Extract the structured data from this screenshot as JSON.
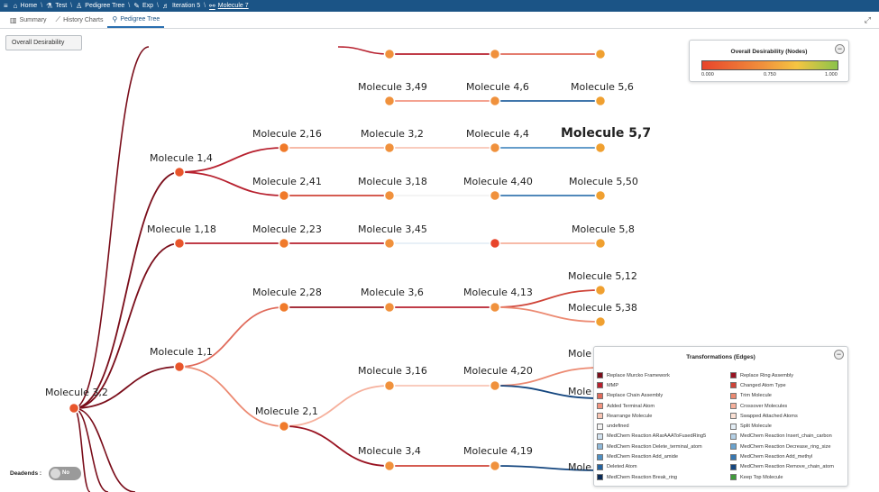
{
  "breadcrumb": [
    {
      "label": "Home",
      "icon": "home-icon"
    },
    {
      "label": "Test",
      "icon": "flask-icon"
    },
    {
      "label": "Pedigree Tree",
      "icon": "person-icon"
    },
    {
      "label": "Exp",
      "icon": "pencil-icon"
    },
    {
      "label": "Iteration 5",
      "icon": "iteration-icon"
    },
    {
      "label": "Molecule 7",
      "icon": "molecule-icon"
    }
  ],
  "tabs": [
    {
      "label": "Summary",
      "icon": "bar-chart-icon"
    },
    {
      "label": "History Charts",
      "icon": "line-chart-icon"
    },
    {
      "label": "Pedigree Tree",
      "icon": "tree-icon",
      "active": true
    }
  ],
  "desirability_button": "Overall Desirability",
  "node_legend": {
    "title": "Overall Desirability (Nodes)",
    "ticks": [
      "0.000",
      "0.750",
      "1.000"
    ],
    "colors": [
      "#e8452b",
      "#f0913c",
      "#f5c542",
      "#8bc34a"
    ]
  },
  "edge_legend": {
    "title": "Transformations (Edges)",
    "left": [
      {
        "label": "Replace Murcko Framework",
        "color": "#7a0d1a"
      },
      {
        "label": "MMP",
        "color": "#b7202e"
      },
      {
        "label": "Replace Chain Assembly",
        "color": "#e06a5a"
      },
      {
        "label": "Added Terminal Atom",
        "color": "#f29480"
      },
      {
        "label": "Rearrange Molecule",
        "color": "#f8c5b4"
      },
      {
        "label": "undefined",
        "color": "#f3f3f3"
      },
      {
        "label": "MedChem Reaction ARarAAAToFusedRing5",
        "color": "#d3e3f0"
      },
      {
        "label": "MedChem Reaction Delete_terminal_atom",
        "color": "#8fb9d9"
      },
      {
        "label": "MedChem Reaction Add_amide",
        "color": "#4f8fc2"
      },
      {
        "label": "Deleted Atom",
        "color": "#24639f"
      },
      {
        "label": "MedChem Reaction Break_ring",
        "color": "#0a2a57"
      }
    ],
    "right": [
      {
        "label": "Replace Ring Assembly",
        "color": "#9a1422"
      },
      {
        "label": "Changed Atom Type",
        "color": "#cf4438"
      },
      {
        "label": "Trim Molecule",
        "color": "#ec8a72"
      },
      {
        "label": "Crossover Molecules",
        "color": "#f6b09c"
      },
      {
        "label": "Swapped Attached Atoms",
        "color": "#fbe0d4"
      },
      {
        "label": "Split Molecule",
        "color": "#e4eef6"
      },
      {
        "label": "MedChem Reaction Insert_chain_carbon",
        "color": "#b4d0e6"
      },
      {
        "label": "MedChem Reaction Decrease_ring_size",
        "color": "#6aa3cf"
      },
      {
        "label": "MedChem Reaction Add_methyl",
        "color": "#3777b1"
      },
      {
        "label": "MedChem Reaction Remove_chain_atom",
        "color": "#14467f"
      },
      {
        "label": "Keep Top Molecule",
        "color": "#3f9a3a"
      }
    ]
  },
  "deadends": {
    "label": "Deadends :",
    "value": "No"
  },
  "tree": {
    "nodes": [
      {
        "label": "Molecule 3,2",
        "color": "#e8552b"
      },
      {
        "label": "",
        "color": "#f0913c"
      },
      {
        "label": "",
        "color": "#f0913c"
      },
      {
        "label": "",
        "color": "#f0a030"
      },
      {
        "label": "Molecule 3,49",
        "color": "#f0913c"
      },
      {
        "label": "Molecule 4,6",
        "color": "#f0913c"
      },
      {
        "label": "Molecule 5,6",
        "color": "#f0a030"
      },
      {
        "label": "Molecule 1,4",
        "color": "#e8552b"
      },
      {
        "label": "Molecule 2,16",
        "color": "#f07a2a"
      },
      {
        "label": "Molecule 3,2",
        "color": "#f0913c"
      },
      {
        "label": "Molecule 4,4",
        "color": "#f0913c"
      },
      {
        "label": "Molecule 5,7",
        "color": "#f0a030",
        "bold": true
      },
      {
        "label": "Molecule 2,41",
        "color": "#f07a2a"
      },
      {
        "label": "Molecule 3,18",
        "color": "#f0913c"
      },
      {
        "label": "Molecule 4,40",
        "color": "#f0913c"
      },
      {
        "label": "Molecule 5,50",
        "color": "#f0a030"
      },
      {
        "label": "Molecule 1,18",
        "color": "#e8552b"
      },
      {
        "label": "Molecule 2,23",
        "color": "#f07a2a"
      },
      {
        "label": "Molecule 3,45",
        "color": "#f0913c"
      },
      {
        "label": "",
        "color": "#e8452b"
      },
      {
        "label": "Molecule 5,8",
        "color": "#f0a030"
      },
      {
        "label": "Molecule 2,28",
        "color": "#f07a2a"
      },
      {
        "label": "Molecule 3,6",
        "color": "#f0913c"
      },
      {
        "label": "Molecule 4,13",
        "color": "#f0913c"
      },
      {
        "label": "Molecule 5,12",
        "color": "#f0a030"
      },
      {
        "label": "Molecule 5,38",
        "color": "#f0a030"
      },
      {
        "label": "Molecule 1,1",
        "color": "#e8552b"
      },
      {
        "label": "Molecule 2,1",
        "color": "#f07a2a"
      },
      {
        "label": "Molecule 3,16",
        "color": "#f0913c"
      },
      {
        "label": "Molecule 4,20",
        "color": "#f0913c"
      },
      {
        "label": "Molecule 3,4",
        "color": "#f0913c"
      },
      {
        "label": "Molecule 4,19",
        "color": "#f0913c"
      },
      {
        "label": "Mole",
        "color": "#f0a030"
      },
      {
        "label": "Mole",
        "color": "#f0a030"
      },
      {
        "label": "Mole",
        "color": "#f0a030"
      }
    ],
    "edges": [
      {
        "from": 1,
        "to": 2,
        "color": "#b7202e"
      },
      {
        "from": 2,
        "to": 3,
        "color": "#e06a5a"
      },
      {
        "from": 4,
        "to": 5,
        "color": "#f29480"
      },
      {
        "from": 5,
        "to": 6,
        "color": "#24639f"
      },
      {
        "from": 0,
        "to": 7,
        "color": "#7a0d1a"
      },
      {
        "from": 7,
        "to": 8,
        "color": "#b7202e"
      },
      {
        "from": 8,
        "to": 9,
        "color": "#f6b09c"
      },
      {
        "from": 9,
        "to": 10,
        "color": "#f8c5b4"
      },
      {
        "from": 10,
        "to": 11,
        "color": "#4f8fc2"
      },
      {
        "from": 7,
        "to": 12,
        "color": "#b7202e"
      },
      {
        "from": 12,
        "to": 13,
        "color": "#cf4438"
      },
      {
        "from": 13,
        "to": 14,
        "color": "#f3f3f3"
      },
      {
        "from": 14,
        "to": 15,
        "color": "#3777b1"
      },
      {
        "from": 0,
        "to": 16,
        "color": "#7a0d1a"
      },
      {
        "from": 16,
        "to": 17,
        "color": "#b7202e"
      },
      {
        "from": 17,
        "to": 18,
        "color": "#b7202e"
      },
      {
        "from": 18,
        "to": 19,
        "color": "#e4eef6"
      },
      {
        "from": 19,
        "to": 20,
        "color": "#f6b09c"
      },
      {
        "from": 0,
        "to": 26,
        "color": "#7a0d1a"
      },
      {
        "from": 26,
        "to": 21,
        "color": "#e06a5a"
      },
      {
        "from": 21,
        "to": 22,
        "color": "#9a1422"
      },
      {
        "from": 22,
        "to": 23,
        "color": "#b7202e"
      },
      {
        "from": 23,
        "to": 24,
        "color": "#cf4438"
      },
      {
        "from": 23,
        "to": 25,
        "color": "#ec8a72"
      },
      {
        "from": 26,
        "to": 27,
        "color": "#ec8a72"
      },
      {
        "from": 27,
        "to": 28,
        "color": "#f6b09c"
      },
      {
        "from": 28,
        "to": 29,
        "color": "#f8c5b4"
      },
      {
        "from": 29,
        "to": 32,
        "color": "#ec8a72"
      },
      {
        "from": 29,
        "to": 33,
        "color": "#14467f"
      },
      {
        "from": 27,
        "to": 30,
        "color": "#9a1422"
      },
      {
        "from": 30,
        "to": 31,
        "color": "#cf4438"
      },
      {
        "from": 31,
        "to": 34,
        "color": "#14467f"
      }
    ]
  }
}
